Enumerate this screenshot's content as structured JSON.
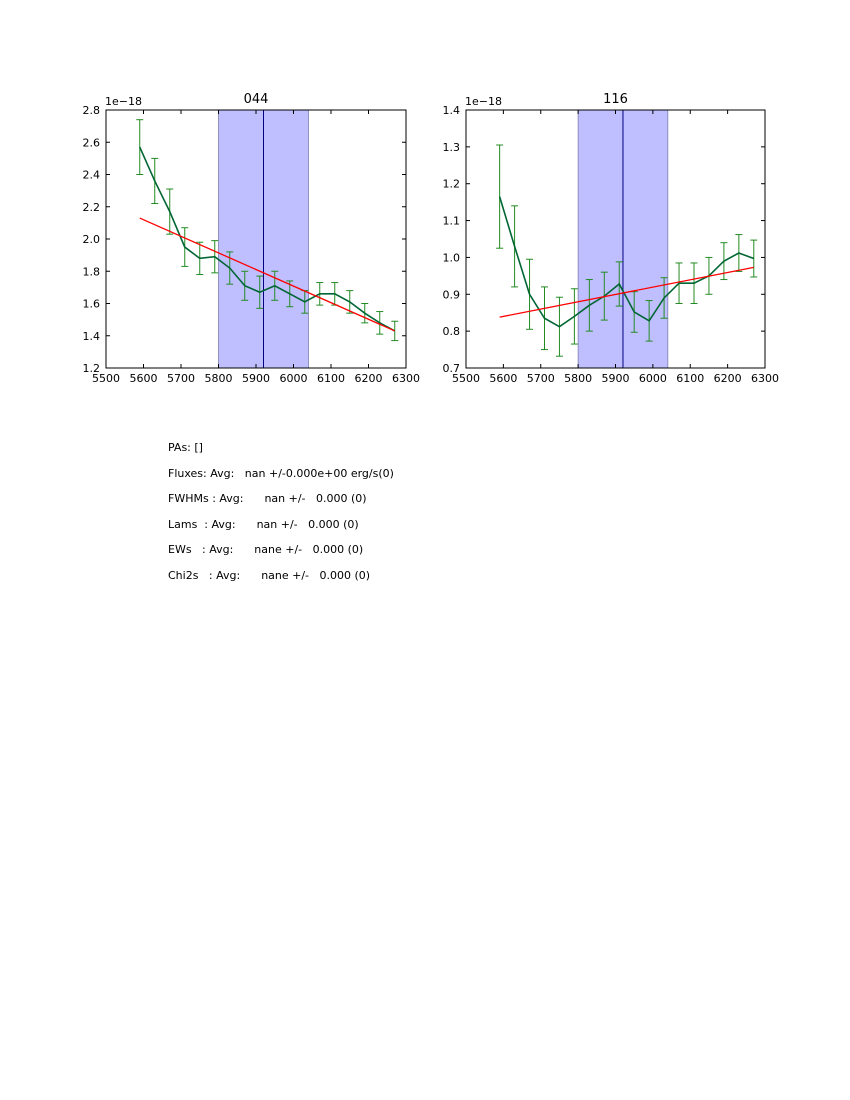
{
  "chart_data": [
    {
      "type": "line",
      "title": "044",
      "offset_label": "1e−18",
      "xlim": [
        5500,
        6300
      ],
      "ylim": [
        1.2,
        2.8
      ],
      "x_ticks": [
        5500,
        5600,
        5700,
        5800,
        5900,
        6000,
        6100,
        6200,
        6300
      ],
      "y_ticks": [
        1.2,
        1.4,
        1.6,
        1.8,
        2.0,
        2.2,
        2.4,
        2.6,
        2.8
      ],
      "y_tick_labels": [
        "1.2",
        "1.4",
        "1.6",
        "1.8",
        "2.0",
        "2.2",
        "2.4",
        "2.6",
        "2.8"
      ],
      "shaded_band": [
        5800,
        6040
      ],
      "vline": 5920,
      "series": [
        {
          "name": "spectrum",
          "color": "#006633",
          "x": [
            5590,
            5630,
            5670,
            5710,
            5750,
            5790,
            5830,
            5870,
            5910,
            5950,
            5990,
            6030,
            6070,
            6110,
            6150,
            6190,
            6230,
            6270
          ],
          "y": [
            2.57,
            2.36,
            2.17,
            1.95,
            1.88,
            1.89,
            1.82,
            1.71,
            1.67,
            1.71,
            1.66,
            1.61,
            1.66,
            1.66,
            1.61,
            1.54,
            1.48,
            1.43
          ],
          "yerr": [
            0.17,
            0.14,
            0.14,
            0.12,
            0.1,
            0.1,
            0.1,
            0.09,
            0.1,
            0.09,
            0.08,
            0.07,
            0.07,
            0.07,
            0.07,
            0.06,
            0.07,
            0.06
          ]
        },
        {
          "name": "continuum fit",
          "color": "#ff0000",
          "x": [
            5590,
            6270
          ],
          "y": [
            2.13,
            1.43
          ]
        }
      ]
    },
    {
      "type": "line",
      "title": "116",
      "offset_label": "1e−18",
      "xlim": [
        5500,
        6300
      ],
      "ylim": [
        0.7,
        1.4
      ],
      "x_ticks": [
        5500,
        5600,
        5700,
        5800,
        5900,
        6000,
        6100,
        6200,
        6300
      ],
      "y_ticks": [
        0.7,
        0.8,
        0.9,
        1.0,
        1.1,
        1.2,
        1.3,
        1.4
      ],
      "y_tick_labels": [
        "0.7",
        "0.8",
        "0.9",
        "1.0",
        "1.1",
        "1.2",
        "1.3",
        "1.4"
      ],
      "shaded_band": [
        5800,
        6040
      ],
      "vline": 5920,
      "series": [
        {
          "name": "spectrum",
          "color": "#006633",
          "x": [
            5590,
            5630,
            5670,
            5710,
            5750,
            5790,
            5830,
            5870,
            5910,
            5950,
            5990,
            6030,
            6070,
            6110,
            6150,
            6190,
            6230,
            6270
          ],
          "y": [
            1.165,
            1.03,
            0.9,
            0.835,
            0.812,
            0.84,
            0.87,
            0.895,
            0.928,
            0.852,
            0.828,
            0.89,
            0.93,
            0.93,
            0.95,
            0.99,
            1.012,
            0.997
          ],
          "yerr": [
            0.14,
            0.11,
            0.095,
            0.085,
            0.08,
            0.075,
            0.07,
            0.065,
            0.06,
            0.055,
            0.055,
            0.055,
            0.055,
            0.055,
            0.05,
            0.05,
            0.05,
            0.05
          ]
        },
        {
          "name": "continuum fit",
          "color": "#ff0000",
          "x": [
            5590,
            6270
          ],
          "y": [
            0.838,
            0.973
          ]
        }
      ]
    }
  ],
  "colors": {
    "band_fill": "#bfbfff",
    "band_edge": "#8080b0",
    "vline": "#000080",
    "errbar": "#228b22"
  },
  "stats": {
    "pas": "PAs: []",
    "fluxes": "Fluxes: Avg:   nan +/-0.000e+00 erg/s(0)",
    "fwhms": "FWHMs : Avg:      nan +/-   0.000 (0)",
    "lams": "Lams  : Avg:      nan +/-   0.000 (0)",
    "ews": "EWs   : Avg:      nane +/-   0.000 (0)",
    "chi2s": "Chi2s   : Avg:      nane +/-   0.000 (0)"
  }
}
